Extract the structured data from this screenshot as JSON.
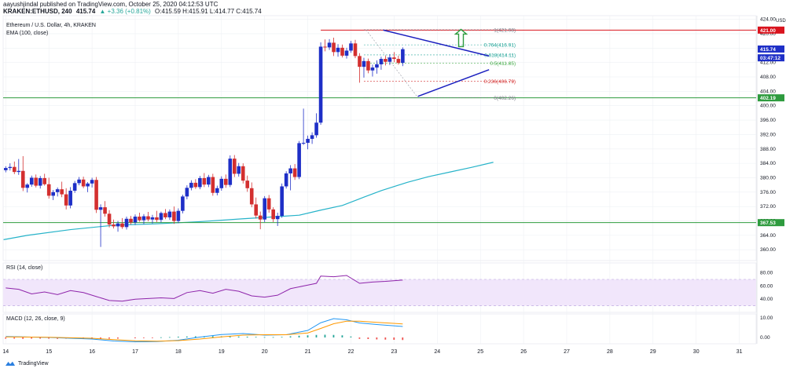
{
  "header": {
    "publish_line": "aayushjindal published on TradingView.com, October 25, 2020 04:12:53 UTC",
    "symbol": "KRAKEN:ETHUSD, 240",
    "last": "415.74",
    "change": "▲ +3.36 (+0.81%)",
    "ohlc": "O:415.59 H:415.91 L:414.77 C:415.74"
  },
  "legend": {
    "title": "Ethereum / U.S. Dollar, 4h, KRAKEN",
    "ema": "EMA (100, close)"
  },
  "colors": {
    "up": "#1e2fc7",
    "down": "#d32f2f",
    "ema": "#26b3c9",
    "support": "#2e9b3e",
    "resistance": "#d9141e",
    "triangle": "#1a1fbf",
    "arrow": "#2e9b3e",
    "rsi_band": "#f1e6fb",
    "rsi_line": "#8e24aa",
    "macd": "#2196f3",
    "signal": "#ff9800"
  },
  "rsi": {
    "label": "RSI (14, close)",
    "ticks": [
      "80.00",
      "60.00",
      "40.00"
    ]
  },
  "macd": {
    "label": "MACD (12, 26, close, 9)",
    "ticks": [
      "10.00",
      "0.00"
    ]
  },
  "brand": "TradingView",
  "chart_data": {
    "type": "candlestick",
    "title": "Ethereum / U.S. Dollar, 4h, KRAKEN",
    "currency": "USD",
    "x_ticks": [
      "14",
      "15",
      "16",
      "17",
      "18",
      "19",
      "20",
      "21",
      "22",
      "23",
      "24",
      "25",
      "26",
      "27",
      "28",
      "29",
      "30",
      "31"
    ],
    "y_ticks": [
      360,
      364,
      368,
      372,
      376,
      380,
      384,
      388,
      392,
      396,
      400,
      404,
      408,
      412,
      416,
      420,
      424
    ],
    "ylim": [
      357,
      425
    ],
    "price_labels": [
      {
        "text": "421.00",
        "value": 421.0,
        "color": "#d9141e"
      },
      {
        "text": "415.74",
        "value": 415.74,
        "color": "#1e2fc7"
      },
      {
        "text": "03:47:12",
        "value": 413.3,
        "color": "#1e2fc7"
      },
      {
        "text": "402.19",
        "value": 402.19,
        "color": "#2e9b3e"
      },
      {
        "text": "367.53",
        "value": 367.53,
        "color": "#2e9b3e"
      }
    ],
    "fib_levels": [
      {
        "label": "1(421.08)",
        "value": 421.08
      },
      {
        "label": "0.764(416.91)",
        "value": 416.91
      },
      {
        "label": "0.618(414.11)",
        "value": 414.11
      },
      {
        "label": "0.5(411.85)",
        "value": 411.85
      },
      {
        "label": "0.236(406.79)",
        "value": 406.79
      },
      {
        "label": "0(402.26)",
        "value": 402.26
      }
    ],
    "support_levels": [
      402.19,
      367.53
    ],
    "resistance_level": 421.0,
    "triangle": {
      "upper": [
        [
          22.75,
          421.0
        ],
        [
          25.2,
          413.8
        ]
      ],
      "lower": [
        [
          23.55,
          402.6
        ],
        [
          25.2,
          410.0
        ]
      ]
    },
    "arrow": {
      "x": 24.55,
      "from": 416.4,
      "to": 421.2
    },
    "ema": [
      [
        13.95,
        362.8
      ],
      [
        14.5,
        364.0
      ],
      [
        15.5,
        365.6
      ],
      [
        16.5,
        366.8
      ],
      [
        17.5,
        367.2
      ],
      [
        18.5,
        367.8
      ],
      [
        19.5,
        368.6
      ],
      [
        20.3,
        369.2
      ],
      [
        20.8,
        369.6
      ],
      [
        21.3,
        371.0
      ],
      [
        21.8,
        372.3
      ],
      [
        22.3,
        374.6
      ],
      [
        22.7,
        376.4
      ],
      [
        23.3,
        378.7
      ],
      [
        23.8,
        380.3
      ],
      [
        24.3,
        381.6
      ],
      [
        24.8,
        382.9
      ],
      [
        25.3,
        384.3
      ]
    ],
    "candles": [
      {
        "x": 14.0,
        "o": 382.1,
        "h": 383.2,
        "l": 381.5,
        "c": 382.7
      },
      {
        "x": 14.1,
        "o": 382.7,
        "h": 384.0,
        "l": 382.0,
        "c": 383.0
      },
      {
        "x": 14.2,
        "o": 383.0,
        "h": 384.5,
        "l": 381.0,
        "c": 381.6
      },
      {
        "x": 14.3,
        "o": 381.6,
        "h": 385.2,
        "l": 380.8,
        "c": 381.9
      },
      {
        "x": 14.4,
        "o": 381.9,
        "h": 386.0,
        "l": 376.3,
        "c": 377.2
      },
      {
        "x": 14.5,
        "o": 377.2,
        "h": 378.5,
        "l": 375.9,
        "c": 378.1
      },
      {
        "x": 14.6,
        "o": 378.1,
        "h": 380.6,
        "l": 377.5,
        "c": 380.0
      },
      {
        "x": 14.7,
        "o": 380.0,
        "h": 380.9,
        "l": 377.3,
        "c": 377.8
      },
      {
        "x": 14.8,
        "o": 377.8,
        "h": 380.5,
        "l": 377.0,
        "c": 379.9
      },
      {
        "x": 14.9,
        "o": 379.9,
        "h": 381.1,
        "l": 377.8,
        "c": 378.2
      },
      {
        "x": 15.0,
        "o": 378.2,
        "h": 380.0,
        "l": 374.2,
        "c": 375.0
      },
      {
        "x": 15.1,
        "o": 375.0,
        "h": 376.6,
        "l": 373.8,
        "c": 376.0
      },
      {
        "x": 15.2,
        "o": 376.0,
        "h": 377.3,
        "l": 374.8,
        "c": 376.8
      },
      {
        "x": 15.3,
        "o": 376.8,
        "h": 378.9,
        "l": 374.6,
        "c": 375.4
      },
      {
        "x": 15.4,
        "o": 375.4,
        "h": 377.1,
        "l": 371.2,
        "c": 372.3
      },
      {
        "x": 15.5,
        "o": 372.3,
        "h": 377.4,
        "l": 371.5,
        "c": 376.4
      },
      {
        "x": 15.6,
        "o": 376.4,
        "h": 379.1,
        "l": 375.8,
        "c": 378.5
      },
      {
        "x": 15.7,
        "o": 378.5,
        "h": 380.2,
        "l": 377.9,
        "c": 379.5
      },
      {
        "x": 15.8,
        "o": 379.5,
        "h": 380.3,
        "l": 377.1,
        "c": 377.6
      },
      {
        "x": 15.9,
        "o": 377.6,
        "h": 378.8,
        "l": 376.0,
        "c": 378.4
      },
      {
        "x": 16.0,
        "o": 378.4,
        "h": 380.0,
        "l": 377.3,
        "c": 379.4
      },
      {
        "x": 16.1,
        "o": 379.4,
        "h": 380.2,
        "l": 370.2,
        "c": 371.1
      },
      {
        "x": 16.2,
        "o": 371.1,
        "h": 372.6,
        "l": 360.8,
        "c": 371.8
      },
      {
        "x": 16.3,
        "o": 371.8,
        "h": 373.5,
        "l": 369.2,
        "c": 370.0
      },
      {
        "x": 16.4,
        "o": 370.0,
        "h": 371.0,
        "l": 366.2,
        "c": 367.0
      },
      {
        "x": 16.5,
        "o": 367.0,
        "h": 368.4,
        "l": 365.9,
        "c": 366.5
      },
      {
        "x": 16.6,
        "o": 366.5,
        "h": 368.0,
        "l": 365.0,
        "c": 367.3
      },
      {
        "x": 16.7,
        "o": 367.3,
        "h": 368.8,
        "l": 365.8,
        "c": 366.3
      },
      {
        "x": 16.8,
        "o": 366.3,
        "h": 369.2,
        "l": 365.6,
        "c": 368.6
      },
      {
        "x": 16.9,
        "o": 368.6,
        "h": 369.4,
        "l": 367.0,
        "c": 367.6
      },
      {
        "x": 17.0,
        "o": 367.6,
        "h": 369.8,
        "l": 366.9,
        "c": 369.2
      },
      {
        "x": 17.1,
        "o": 369.2,
        "h": 370.3,
        "l": 367.8,
        "c": 368.2
      },
      {
        "x": 17.2,
        "o": 368.2,
        "h": 369.9,
        "l": 367.1,
        "c": 369.3
      },
      {
        "x": 17.3,
        "o": 369.3,
        "h": 370.5,
        "l": 367.9,
        "c": 368.4
      },
      {
        "x": 17.4,
        "o": 368.4,
        "h": 369.7,
        "l": 367.3,
        "c": 369.0
      },
      {
        "x": 17.5,
        "o": 369.0,
        "h": 370.8,
        "l": 367.7,
        "c": 368.3
      },
      {
        "x": 17.6,
        "o": 368.3,
        "h": 370.6,
        "l": 367.6,
        "c": 370.2
      },
      {
        "x": 17.7,
        "o": 370.2,
        "h": 371.3,
        "l": 368.5,
        "c": 369.0
      },
      {
        "x": 17.8,
        "o": 369.0,
        "h": 371.2,
        "l": 368.3,
        "c": 370.6
      },
      {
        "x": 17.9,
        "o": 370.6,
        "h": 372.0,
        "l": 367.2,
        "c": 368.0
      },
      {
        "x": 18.0,
        "o": 368.0,
        "h": 371.5,
        "l": 367.4,
        "c": 370.8
      },
      {
        "x": 18.1,
        "o": 370.8,
        "h": 375.3,
        "l": 370.1,
        "c": 374.8
      },
      {
        "x": 18.2,
        "o": 374.8,
        "h": 377.9,
        "l": 374.0,
        "c": 377.2
      },
      {
        "x": 18.3,
        "o": 377.2,
        "h": 379.3,
        "l": 376.5,
        "c": 378.6
      },
      {
        "x": 18.4,
        "o": 378.6,
        "h": 379.6,
        "l": 376.9,
        "c": 377.4
      },
      {
        "x": 18.5,
        "o": 377.4,
        "h": 380.5,
        "l": 376.8,
        "c": 379.9
      },
      {
        "x": 18.6,
        "o": 379.9,
        "h": 381.3,
        "l": 377.4,
        "c": 378.1
      },
      {
        "x": 18.7,
        "o": 378.1,
        "h": 380.8,
        "l": 377.4,
        "c": 380.2
      },
      {
        "x": 18.8,
        "o": 380.2,
        "h": 381.1,
        "l": 375.0,
        "c": 375.8
      },
      {
        "x": 18.9,
        "o": 375.8,
        "h": 377.8,
        "l": 375.1,
        "c": 377.1
      },
      {
        "x": 19.0,
        "o": 377.1,
        "h": 380.4,
        "l": 376.4,
        "c": 379.7
      },
      {
        "x": 19.1,
        "o": 379.7,
        "h": 380.9,
        "l": 377.2,
        "c": 378.0
      },
      {
        "x": 19.2,
        "o": 378.0,
        "h": 386.2,
        "l": 377.4,
        "c": 385.3
      },
      {
        "x": 19.3,
        "o": 385.3,
        "h": 386.3,
        "l": 380.2,
        "c": 381.1
      },
      {
        "x": 19.4,
        "o": 381.1,
        "h": 384.1,
        "l": 380.3,
        "c": 383.2
      },
      {
        "x": 19.5,
        "o": 383.2,
        "h": 384.0,
        "l": 378.4,
        "c": 379.2
      },
      {
        "x": 19.6,
        "o": 379.2,
        "h": 380.6,
        "l": 376.1,
        "c": 377.1
      },
      {
        "x": 19.7,
        "o": 377.1,
        "h": 378.7,
        "l": 371.8,
        "c": 372.6
      },
      {
        "x": 19.8,
        "o": 372.6,
        "h": 374.5,
        "l": 368.7,
        "c": 369.5
      },
      {
        "x": 19.9,
        "o": 369.5,
        "h": 370.6,
        "l": 365.7,
        "c": 368.4
      },
      {
        "x": 20.0,
        "o": 368.4,
        "h": 374.9,
        "l": 367.7,
        "c": 374.3
      },
      {
        "x": 20.1,
        "o": 374.3,
        "h": 375.2,
        "l": 370.3,
        "c": 371.2
      },
      {
        "x": 20.2,
        "o": 371.2,
        "h": 371.8,
        "l": 367.7,
        "c": 368.5
      },
      {
        "x": 20.3,
        "o": 368.5,
        "h": 370.3,
        "l": 366.6,
        "c": 369.4
      },
      {
        "x": 20.4,
        "o": 369.4,
        "h": 378.4,
        "l": 368.9,
        "c": 377.6
      },
      {
        "x": 20.5,
        "o": 377.6,
        "h": 381.8,
        "l": 377.0,
        "c": 381.2
      },
      {
        "x": 20.6,
        "o": 381.2,
        "h": 383.5,
        "l": 376.5,
        "c": 382.6
      },
      {
        "x": 20.7,
        "o": 382.6,
        "h": 383.8,
        "l": 379.4,
        "c": 380.2
      },
      {
        "x": 20.8,
        "o": 380.2,
        "h": 390.2,
        "l": 379.6,
        "c": 389.6
      },
      {
        "x": 20.9,
        "o": 389.6,
        "h": 399.2,
        "l": 389.1,
        "c": 389.7
      },
      {
        "x": 21.0,
        "o": 389.7,
        "h": 391.7,
        "l": 387.9,
        "c": 390.8
      },
      {
        "x": 21.1,
        "o": 390.8,
        "h": 392.6,
        "l": 389.4,
        "c": 391.8
      },
      {
        "x": 21.2,
        "o": 391.8,
        "h": 397.9,
        "l": 391.1,
        "c": 395.3
      },
      {
        "x": 21.3,
        "o": 395.3,
        "h": 417.6,
        "l": 394.7,
        "c": 416.4
      },
      {
        "x": 21.4,
        "o": 416.4,
        "h": 418.4,
        "l": 415.1,
        "c": 416.2
      },
      {
        "x": 21.5,
        "o": 416.2,
        "h": 418.5,
        "l": 415.5,
        "c": 417.5
      },
      {
        "x": 21.6,
        "o": 417.5,
        "h": 418.9,
        "l": 413.8,
        "c": 414.9
      },
      {
        "x": 21.7,
        "o": 414.9,
        "h": 417.1,
        "l": 413.6,
        "c": 416.1
      },
      {
        "x": 21.8,
        "o": 416.1,
        "h": 417.0,
        "l": 413.4,
        "c": 413.9
      },
      {
        "x": 21.9,
        "o": 413.9,
        "h": 416.1,
        "l": 413.1,
        "c": 415.3
      },
      {
        "x": 22.0,
        "o": 415.3,
        "h": 418.0,
        "l": 414.7,
        "c": 417.3
      },
      {
        "x": 22.1,
        "o": 417.3,
        "h": 418.3,
        "l": 413.2,
        "c": 413.8
      },
      {
        "x": 22.2,
        "o": 413.8,
        "h": 414.6,
        "l": 406.4,
        "c": 410.8
      },
      {
        "x": 22.3,
        "o": 410.8,
        "h": 413.3,
        "l": 407.8,
        "c": 412.4
      },
      {
        "x": 22.4,
        "o": 412.4,
        "h": 413.1,
        "l": 409.0,
        "c": 409.8
      },
      {
        "x": 22.5,
        "o": 409.8,
        "h": 411.4,
        "l": 408.1,
        "c": 410.6
      },
      {
        "x": 22.6,
        "o": 410.6,
        "h": 412.6,
        "l": 408.9,
        "c": 411.5
      },
      {
        "x": 22.7,
        "o": 411.5,
        "h": 413.6,
        "l": 410.0,
        "c": 413.0
      },
      {
        "x": 22.8,
        "o": 413.0,
        "h": 413.8,
        "l": 411.2,
        "c": 412.2
      },
      {
        "x": 22.9,
        "o": 412.2,
        "h": 414.3,
        "l": 411.3,
        "c": 413.4
      },
      {
        "x": 23.0,
        "o": 413.4,
        "h": 414.9,
        "l": 412.1,
        "c": 413.0
      },
      {
        "x": 23.1,
        "o": 413.0,
        "h": 413.9,
        "l": 411.4,
        "c": 411.9
      },
      {
        "x": 23.2,
        "o": 411.9,
        "h": 416.2,
        "l": 411.0,
        "c": 415.7
      }
    ],
    "rsi_data": [
      [
        14.0,
        57
      ],
      [
        14.3,
        55
      ],
      [
        14.6,
        48
      ],
      [
        14.9,
        51
      ],
      [
        15.2,
        47
      ],
      [
        15.5,
        53
      ],
      [
        15.8,
        50
      ],
      [
        16.1,
        44
      ],
      [
        16.4,
        38
      ],
      [
        16.7,
        37
      ],
      [
        17.0,
        40
      ],
      [
        17.3,
        41
      ],
      [
        17.6,
        42
      ],
      [
        17.9,
        41
      ],
      [
        18.2,
        50
      ],
      [
        18.5,
        53
      ],
      [
        18.8,
        49
      ],
      [
        19.1,
        55
      ],
      [
        19.4,
        52
      ],
      [
        19.7,
        45
      ],
      [
        20.0,
        43
      ],
      [
        20.3,
        46
      ],
      [
        20.6,
        56
      ],
      [
        20.9,
        60
      ],
      [
        21.2,
        64
      ],
      [
        21.3,
        75
      ],
      [
        21.6,
        74
      ],
      [
        21.9,
        76
      ],
      [
        22.2,
        64
      ],
      [
        22.5,
        66
      ],
      [
        22.8,
        67
      ],
      [
        23.2,
        69
      ]
    ],
    "macd_data": [
      [
        14.0,
        0.5
      ],
      [
        15.0,
        0.0
      ],
      [
        16.0,
        -0.8
      ],
      [
        16.5,
        -1.8
      ],
      [
        17.0,
        -2.2
      ],
      [
        17.5,
        -2.1
      ],
      [
        18.0,
        -1.4
      ],
      [
        18.5,
        0.2
      ],
      [
        19.0,
        1.5
      ],
      [
        19.5,
        2.0
      ],
      [
        20.0,
        1.2
      ],
      [
        20.5,
        1.4
      ],
      [
        21.0,
        3.6
      ],
      [
        21.3,
        7.5
      ],
      [
        21.6,
        9.6
      ],
      [
        21.9,
        9.0
      ],
      [
        22.2,
        7.4
      ],
      [
        22.6,
        6.6
      ],
      [
        23.2,
        5.6
      ]
    ],
    "signal_data": [
      [
        14.0,
        0.3
      ],
      [
        15.0,
        0.1
      ],
      [
        16.0,
        -0.4
      ],
      [
        16.5,
        -1.1
      ],
      [
        17.0,
        -1.7
      ],
      [
        17.5,
        -1.9
      ],
      [
        18.0,
        -1.6
      ],
      [
        18.5,
        -0.8
      ],
      [
        19.0,
        0.3
      ],
      [
        19.5,
        1.2
      ],
      [
        20.0,
        1.4
      ],
      [
        20.5,
        1.4
      ],
      [
        21.0,
        2.3
      ],
      [
        21.3,
        4.6
      ],
      [
        21.6,
        7.0
      ],
      [
        21.9,
        8.3
      ],
      [
        22.2,
        8.3
      ],
      [
        22.6,
        7.7
      ],
      [
        23.2,
        6.9
      ]
    ],
    "macd_hist": [
      [
        14.0,
        -0.6
      ],
      [
        14.2,
        -0.6
      ],
      [
        14.4,
        -0.7
      ],
      [
        14.6,
        -0.6
      ],
      [
        14.8,
        -0.6
      ],
      [
        15.0,
        -0.6
      ],
      [
        15.2,
        -0.7
      ],
      [
        15.4,
        -0.6
      ],
      [
        15.6,
        -0.6
      ],
      [
        15.8,
        -0.6
      ],
      [
        16.0,
        -0.6
      ],
      [
        16.2,
        -0.6
      ],
      [
        16.4,
        -0.6
      ],
      [
        16.6,
        -0.6
      ],
      [
        17.0,
        -0.4
      ],
      [
        17.2,
        -0.3
      ],
      [
        17.4,
        -0.2
      ],
      [
        17.6,
        0.1
      ],
      [
        17.8,
        0.2
      ],
      [
        18.0,
        0.4
      ],
      [
        18.2,
        0.5
      ],
      [
        18.4,
        0.6
      ],
      [
        18.6,
        0.6
      ],
      [
        18.8,
        0.7
      ],
      [
        19.0,
        0.6
      ],
      [
        19.2,
        0.6
      ],
      [
        19.4,
        0.5
      ],
      [
        19.6,
        0.4
      ],
      [
        19.8,
        0.3
      ],
      [
        20.0,
        0.2
      ],
      [
        20.2,
        0.2
      ],
      [
        20.4,
        0.3
      ],
      [
        20.6,
        0.6
      ],
      [
        20.8,
        0.9
      ],
      [
        21.0,
        1.1
      ],
      [
        21.2,
        1.3
      ],
      [
        21.4,
        1.4
      ],
      [
        21.6,
        1.3
      ],
      [
        21.8,
        1.1
      ],
      [
        22.0,
        0.5
      ],
      [
        22.2,
        -0.7
      ],
      [
        22.4,
        -0.8
      ],
      [
        22.6,
        -1.0
      ],
      [
        22.8,
        -1.1
      ],
      [
        23.0,
        -1.2
      ],
      [
        23.2,
        -1.3
      ]
    ]
  }
}
